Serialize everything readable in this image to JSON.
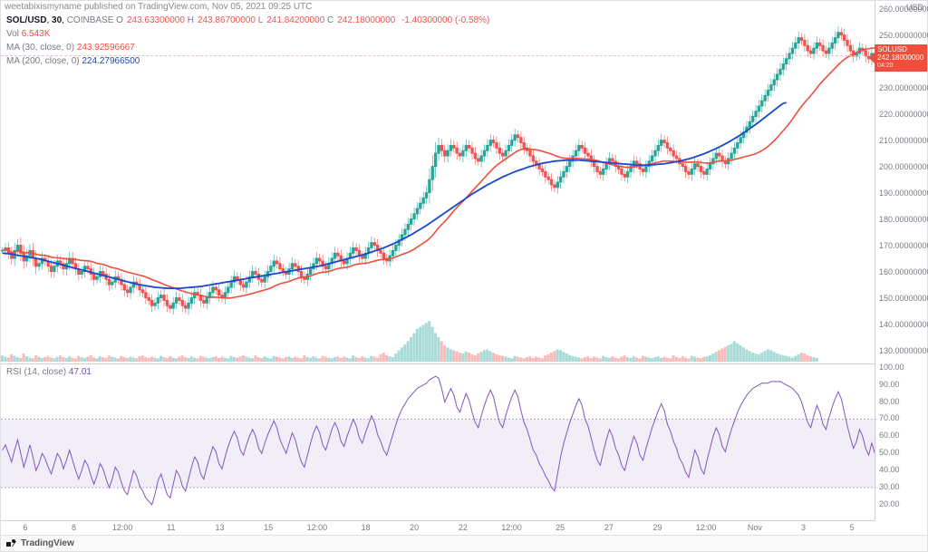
{
  "attribution": "weetabixismyname published on TradingView.com, Nov 05, 2021 09:25 UTC",
  "symbol": {
    "pair": "SOL/USD",
    "interval": "30",
    "exchange": "COINBASE"
  },
  "ohlc": {
    "O": "243.63300000",
    "H": "243.86700000",
    "L": "241.84200000",
    "C": "242.18000000",
    "change": "-1.40300000",
    "change_pct": "(-0.58%)"
  },
  "vol": {
    "label": "Vol",
    "value": "6.543K"
  },
  "ma30": {
    "label": "MA (30, close, 0)",
    "value": "243.92596667",
    "color": "#ef4e3a"
  },
  "ma200": {
    "label": "MA (200, close, 0)",
    "value": "224.27966500",
    "color": "#1848cc"
  },
  "rsi": {
    "label": "RSI (14, close)",
    "value": "47.01",
    "color": "#7e57c2",
    "band_low": 30,
    "band_high": 70
  },
  "price_axis": {
    "unit": "USD",
    "min": 125,
    "max": 263,
    "ticks": [
      {
        "v": 260,
        "l": "260.00000000"
      },
      {
        "v": 250,
        "l": "250.00000000"
      },
      {
        "v": 240,
        "l": ""
      },
      {
        "v": 230,
        "l": "230.00000000"
      },
      {
        "v": 220,
        "l": "220.00000000"
      },
      {
        "v": 210,
        "l": "210.00000000"
      },
      {
        "v": 200,
        "l": "200.00000000"
      },
      {
        "v": 190,
        "l": "190.00000000"
      },
      {
        "v": 180,
        "l": "180.00000000"
      },
      {
        "v": 170,
        "l": "170.00000000"
      },
      {
        "v": 160,
        "l": "160.00000000"
      },
      {
        "v": 150,
        "l": "150.00000000"
      },
      {
        "v": 140,
        "l": "140.00000000"
      },
      {
        "v": 130,
        "l": "130.00000000"
      }
    ],
    "last_flag": {
      "sym": "SOLUSD",
      "price": "242.18000000",
      "countdown": "04:20",
      "y": 242.18,
      "color": "#ef4e3a"
    }
  },
  "rsi_axis": {
    "min": 12,
    "max": 102,
    "ticks": [
      {
        "v": 100,
        "l": "100.00"
      },
      {
        "v": 90,
        "l": "90.00"
      },
      {
        "v": 80,
        "l": "80.00"
      },
      {
        "v": 70,
        "l": "70.00"
      },
      {
        "v": 60,
        "l": "60.00"
      },
      {
        "v": 50,
        "l": "50.00"
      },
      {
        "v": 40,
        "l": "40.00"
      },
      {
        "v": 30,
        "l": "30.00"
      },
      {
        "v": 20,
        "l": "20.00"
      }
    ]
  },
  "x_axis": {
    "labels": [
      "6",
      "8",
      "12:00",
      "11",
      "13",
      "15",
      "12:00",
      "18",
      "20",
      "22",
      "12:00",
      "25",
      "27",
      "29",
      "12:00",
      "Nov",
      "3",
      "5"
    ],
    "count": 18
  },
  "footer": {
    "brand": "TradingView"
  },
  "chart": {
    "type": "candlestick+ma+volume+rsi",
    "background_color": "#ffffff",
    "grid_color": "#f0f0f0",
    "up_color": "#26a69a",
    "down_color": "#ef5350",
    "close_series": [
      168,
      169,
      167,
      165,
      168,
      170,
      167,
      164,
      166,
      168,
      165,
      162,
      163,
      165,
      164,
      162,
      160,
      162,
      164,
      163,
      161,
      163,
      165,
      163,
      161,
      159,
      160,
      162,
      161,
      159,
      157,
      158,
      160,
      159,
      157,
      155,
      156,
      158,
      157,
      155,
      153,
      152,
      154,
      156,
      155,
      153,
      152,
      150,
      149,
      147,
      148,
      150,
      151,
      149,
      147,
      146,
      148,
      150,
      149,
      147,
      146,
      148,
      150,
      152,
      151,
      149,
      148,
      150,
      152,
      154,
      153,
      151,
      150,
      152,
      154,
      156,
      158,
      157,
      155,
      154,
      156,
      158,
      160,
      159,
      157,
      156,
      158,
      160,
      162,
      164,
      163,
      161,
      160,
      159,
      161,
      163,
      162,
      160,
      158,
      157,
      159,
      161,
      163,
      165,
      164,
      162,
      161,
      163,
      165,
      167,
      166,
      164,
      163,
      165,
      167,
      169,
      168,
      166,
      165,
      167,
      169,
      171,
      170,
      168,
      167,
      165,
      164,
      166,
      168,
      170,
      172,
      174,
      176,
      178,
      180,
      182,
      184,
      186,
      188,
      190,
      195,
      200,
      205,
      208,
      206,
      204,
      206,
      208,
      207,
      205,
      204,
      206,
      208,
      207,
      205,
      203,
      202,
      204,
      206,
      208,
      210,
      209,
      207,
      205,
      204,
      206,
      208,
      210,
      212,
      211,
      209,
      207,
      206,
      204,
      202,
      201,
      199,
      198,
      196,
      195,
      193,
      192,
      194,
      196,
      198,
      200,
      202,
      204,
      206,
      208,
      207,
      205,
      204,
      202,
      200,
      198,
      197,
      199,
      201,
      203,
      202,
      200,
      199,
      197,
      196,
      198,
      200,
      202,
      201,
      199,
      198,
      200,
      202,
      204,
      206,
      208,
      210,
      209,
      207,
      206,
      204,
      203,
      201,
      200,
      198,
      197,
      199,
      201,
      200,
      198,
      197,
      199,
      201,
      203,
      205,
      204,
      202,
      201,
      203,
      205,
      207,
      209,
      211,
      213,
      215,
      217,
      219,
      221,
      223,
      225,
      227,
      229,
      231,
      233,
      235,
      237,
      239,
      241,
      243,
      245,
      247,
      249,
      248,
      246,
      244,
      243,
      245,
      247,
      246,
      244,
      243,
      245,
      247,
      249,
      251,
      250,
      248,
      246,
      244,
      242,
      243,
      245,
      244,
      242,
      241,
      243,
      242
    ],
    "ma200_series": [
      167,
      166.9,
      166.8,
      166.6,
      166.4,
      166.2,
      166,
      165.8,
      165.6,
      165.4,
      165.2,
      165,
      164.8,
      164.5,
      164.2,
      163.9,
      163.6,
      163.3,
      163,
      162.7,
      162.4,
      162.1,
      161.8,
      161.5,
      161.2,
      160.9,
      160.6,
      160.3,
      160,
      159.7,
      159.4,
      159.1,
      158.8,
      158.5,
      158.2,
      157.9,
      157.6,
      157.3,
      157,
      156.7,
      156.4,
      156.1,
      155.8,
      155.5,
      155.2,
      155,
      154.8,
      154.6,
      154.4,
      154.2,
      154,
      153.9,
      153.8,
      153.7,
      153.6,
      153.6,
      153.6,
      153.6,
      153.6,
      153.7,
      153.8,
      153.9,
      154,
      154.1,
      154.2,
      154.3,
      154.5,
      154.7,
      154.9,
      155.1,
      155.3,
      155.5,
      155.7,
      155.9,
      156.1,
      156.3,
      156.5,
      156.7,
      156.9,
      157.1,
      157.3,
      157.5,
      157.7,
      157.9,
      158.1,
      158.3,
      158.5,
      158.7,
      158.9,
      159.1,
      159.3,
      159.5,
      159.7,
      159.9,
      160.1,
      160.3,
      160.5,
      160.7,
      160.9,
      161.1,
      161.3,
      161.5,
      161.7,
      161.9,
      162.1,
      162.4,
      162.7,
      163,
      163.3,
      163.6,
      163.9,
      164.2,
      164.5,
      164.8,
      165.1,
      165.4,
      165.7,
      166,
      166.3,
      166.6,
      167,
      167.4,
      167.8,
      168.2,
      168.6,
      169,
      169.5,
      170,
      170.5,
      171,
      171.6,
      172.2,
      172.8,
      173.4,
      174,
      174.7,
      175.4,
      176.1,
      176.8,
      177.5,
      178.3,
      179.1,
      179.9,
      180.7,
      181.5,
      182.3,
      183.1,
      183.9,
      184.7,
      185.5,
      186.3,
      187.1,
      187.9,
      188.7,
      189.5,
      190.2,
      190.9,
      191.6,
      192.3,
      193,
      193.6,
      194.2,
      194.8,
      195.4,
      196,
      196.5,
      197,
      197.5,
      198,
      198.4,
      198.8,
      199.2,
      199.6,
      200,
      200.3,
      200.6,
      200.9,
      201.2,
      201.4,
      201.6,
      201.8,
      202,
      202.1,
      202.2,
      202.3,
      202.4,
      202.4,
      202.4,
      202.4,
      202.4,
      202.3,
      202.2,
      202.1,
      202,
      201.9,
      201.8,
      201.7,
      201.6,
      201.5,
      201.4,
      201.3,
      201.2,
      201.1,
      201,
      200.9,
      200.8,
      200.7,
      200.6,
      200.5,
      200.5,
      200.5,
      200.5,
      200.5,
      200.6,
      200.7,
      200.8,
      200.9,
      201,
      201.2,
      201.4,
      201.6,
      201.8,
      202,
      202.3,
      202.6,
      202.9,
      203.2,
      203.6,
      204,
      204.4,
      204.8,
      205.3,
      205.8,
      206.3,
      206.8,
      207.4,
      208,
      208.6,
      209.2,
      209.9,
      210.6,
      211.3,
      212,
      212.8,
      213.6,
      214.4,
      215.2,
      216,
      216.9,
      217.8,
      218.7,
      219.6,
      220.5,
      221.4,
      222.3,
      223.2,
      224,
      224.3
    ],
    "rsi_series": [
      52,
      55,
      50,
      45,
      52,
      58,
      50,
      42,
      48,
      55,
      48,
      40,
      44,
      50,
      47,
      42,
      38,
      44,
      50,
      47,
      41,
      46,
      52,
      46,
      40,
      35,
      40,
      46,
      43,
      37,
      32,
      37,
      44,
      41,
      35,
      30,
      35,
      42,
      39,
      33,
      28,
      26,
      33,
      40,
      37,
      31,
      28,
      24,
      22,
      20,
      26,
      34,
      38,
      32,
      26,
      24,
      32,
      40,
      37,
      31,
      28,
      35,
      42,
      48,
      45,
      38,
      35,
      42,
      48,
      54,
      51,
      44,
      41,
      48,
      54,
      59,
      63,
      59,
      52,
      49,
      55,
      60,
      64,
      60,
      53,
      50,
      56,
      61,
      65,
      69,
      65,
      58,
      54,
      50,
      56,
      62,
      58,
      51,
      45,
      42,
      49,
      56,
      62,
      66,
      62,
      55,
      52,
      58,
      64,
      68,
      64,
      57,
      54,
      60,
      65,
      70,
      66,
      59,
      56,
      62,
      67,
      72,
      68,
      61,
      57,
      52,
      49,
      55,
      61,
      67,
      72,
      76,
      79,
      82,
      84,
      86,
      88,
      89,
      90,
      91,
      93,
      94,
      95,
      94,
      88,
      80,
      84,
      88,
      84,
      77,
      74,
      80,
      85,
      81,
      74,
      68,
      65,
      72,
      78,
      83,
      87,
      83,
      75,
      68,
      65,
      72,
      78,
      83,
      87,
      83,
      75,
      68,
      64,
      58,
      52,
      49,
      44,
      41,
      37,
      34,
      30,
      28,
      38,
      48,
      56,
      62,
      68,
      73,
      78,
      82,
      78,
      70,
      66,
      59,
      52,
      46,
      43,
      51,
      58,
      64,
      60,
      53,
      49,
      43,
      40,
      47,
      54,
      60,
      56,
      49,
      46,
      53,
      59,
      65,
      70,
      75,
      79,
      75,
      67,
      63,
      57,
      53,
      47,
      44,
      39,
      36,
      44,
      52,
      48,
      41,
      38,
      46,
      53,
      60,
      65,
      61,
      54,
      51,
      58,
      64,
      69,
      74,
      78,
      81,
      84,
      86,
      88,
      89,
      90,
      91,
      91,
      91,
      92,
      92,
      92,
      92,
      91,
      90,
      89,
      88,
      86,
      84,
      80,
      74,
      68,
      65,
      72,
      78,
      74,
      67,
      64,
      71,
      77,
      82,
      86,
      82,
      74,
      66,
      59,
      53,
      57,
      64,
      60,
      53,
      49,
      56,
      50
    ],
    "vol_rel": [
      0.15,
      0.12,
      0.1,
      0.18,
      0.14,
      0.11,
      0.09,
      0.2,
      0.13,
      0.1,
      0.08,
      0.16,
      0.12,
      0.09,
      0.11,
      0.14,
      0.1,
      0.08,
      0.12,
      0.15,
      0.11,
      0.09,
      0.13,
      0.1,
      0.08,
      0.14,
      0.11,
      0.09,
      0.12,
      0.16,
      0.1,
      0.08,
      0.13,
      0.11,
      0.09,
      0.15,
      0.12,
      0.1,
      0.08,
      0.14,
      0.11,
      0.09,
      0.12,
      0.1,
      0.08,
      0.13,
      0.15,
      0.11,
      0.09,
      0.12,
      0.1,
      0.08,
      0.14,
      0.11,
      0.09,
      0.13,
      0.1,
      0.08,
      0.12,
      0.15,
      0.11,
      0.09,
      0.13,
      0.1,
      0.08,
      0.14,
      0.12,
      0.1,
      0.08,
      0.11,
      0.13,
      0.09,
      0.12,
      0.1,
      0.08,
      0.14,
      0.11,
      0.09,
      0.13,
      0.16,
      0.12,
      0.1,
      0.08,
      0.15,
      0.11,
      0.09,
      0.13,
      0.1,
      0.08,
      0.14,
      0.12,
      0.1,
      0.08,
      0.11,
      0.13,
      0.09,
      0.12,
      0.1,
      0.08,
      0.15,
      0.11,
      0.09,
      0.13,
      0.1,
      0.08,
      0.14,
      0.12,
      0.1,
      0.08,
      0.11,
      0.13,
      0.09,
      0.12,
      0.1,
      0.08,
      0.15,
      0.11,
      0.09,
      0.13,
      0.1,
      0.08,
      0.14,
      0.12,
      0.1,
      0.18,
      0.22,
      0.16,
      0.13,
      0.11,
      0.2,
      0.28,
      0.35,
      0.42,
      0.5,
      0.6,
      0.7,
      0.8,
      0.85,
      0.9,
      0.95,
      1.0,
      0.85,
      0.7,
      0.6,
      0.5,
      0.4,
      0.35,
      0.3,
      0.28,
      0.25,
      0.22,
      0.2,
      0.25,
      0.22,
      0.18,
      0.16,
      0.2,
      0.24,
      0.28,
      0.3,
      0.26,
      0.22,
      0.18,
      0.16,
      0.14,
      0.12,
      0.1,
      0.08,
      0.14,
      0.12,
      0.1,
      0.08,
      0.11,
      0.13,
      0.09,
      0.12,
      0.1,
      0.08,
      0.15,
      0.18,
      0.22,
      0.26,
      0.3,
      0.28,
      0.24,
      0.2,
      0.16,
      0.14,
      0.12,
      0.1,
      0.08,
      0.11,
      0.13,
      0.09,
      0.12,
      0.1,
      0.08,
      0.14,
      0.11,
      0.09,
      0.13,
      0.1,
      0.08,
      0.12,
      0.15,
      0.11,
      0.09,
      0.13,
      0.1,
      0.08,
      0.14,
      0.12,
      0.1,
      0.08,
      0.11,
      0.13,
      0.09,
      0.12,
      0.1,
      0.08,
      0.15,
      0.11,
      0.09,
      0.13,
      0.1,
      0.08,
      0.14,
      0.12,
      0.1,
      0.08,
      0.11,
      0.13,
      0.16,
      0.2,
      0.24,
      0.28,
      0.32,
      0.36,
      0.4,
      0.44,
      0.5,
      0.45,
      0.4,
      0.35,
      0.3,
      0.26,
      0.22,
      0.2,
      0.18,
      0.22,
      0.26,
      0.3,
      0.28,
      0.24,
      0.2,
      0.18,
      0.16,
      0.14,
      0.12,
      0.1,
      0.14,
      0.18,
      0.22,
      0.2,
      0.16,
      0.13,
      0.11,
      0.09
    ]
  }
}
